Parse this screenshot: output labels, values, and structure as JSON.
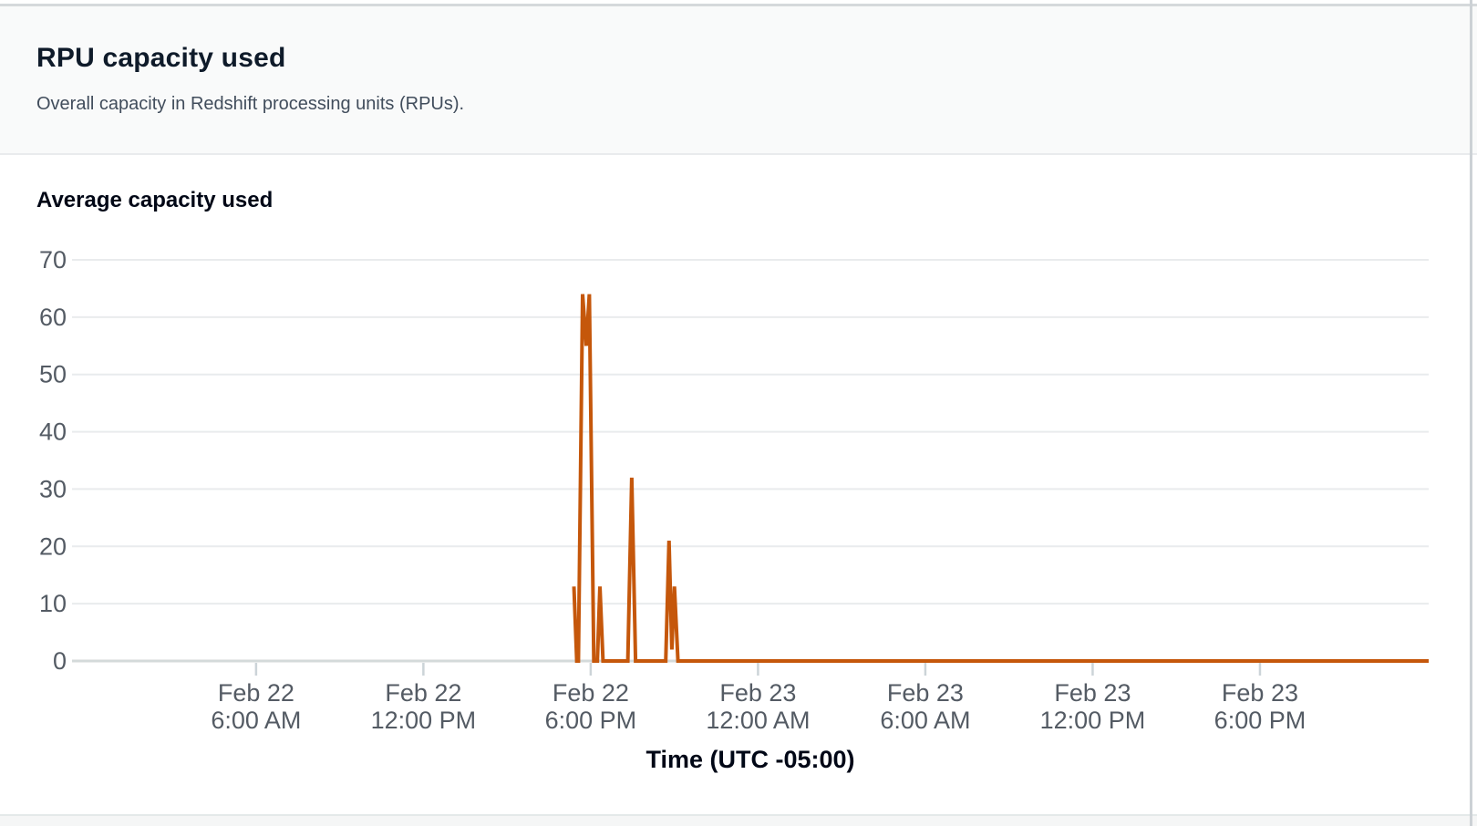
{
  "panel": {
    "title": "RPU capacity used",
    "description": "Overall capacity in Redshift processing units (RPUs)."
  },
  "chart_data": {
    "type": "line",
    "title": "Average capacity used",
    "xlabel": "Time (UTC -05:00)",
    "ylabel": "",
    "ylim": [
      0,
      70
    ],
    "y_ticks": [
      0,
      10,
      20,
      30,
      40,
      50,
      60,
      70
    ],
    "grid": true,
    "legend": false,
    "x_hours_reference": "hours since Feb 22 12:00 AM (UTC -05:00)",
    "x_domain_hours": [
      -0.6,
      48.05
    ],
    "x_ticks": [
      {
        "hour": 6,
        "label_line1": "Feb 22",
        "label_line2": "6:00 AM"
      },
      {
        "hour": 12,
        "label_line1": "Feb 22",
        "label_line2": "12:00 PM"
      },
      {
        "hour": 18,
        "label_line1": "Feb 22",
        "label_line2": "6:00 PM"
      },
      {
        "hour": 24,
        "label_line1": "Feb 23",
        "label_line2": "12:00 AM"
      },
      {
        "hour": 30,
        "label_line1": "Feb 23",
        "label_line2": "6:00 AM"
      },
      {
        "hour": 36,
        "label_line1": "Feb 23",
        "label_line2": "12:00 PM"
      },
      {
        "hour": 42,
        "label_line1": "Feb 23",
        "label_line2": "6:00 PM"
      }
    ],
    "series": [
      {
        "name": "Average capacity used",
        "color": "#c5570b",
        "points": [
          {
            "hour": 17.4,
            "value": 13
          },
          {
            "hour": 17.5,
            "value": 0
          },
          {
            "hour": 17.56,
            "value": 0
          },
          {
            "hour": 17.71,
            "value": 64
          },
          {
            "hour": 17.84,
            "value": 55
          },
          {
            "hour": 17.95,
            "value": 64
          },
          {
            "hour": 18.11,
            "value": 0
          },
          {
            "hour": 18.24,
            "value": 0
          },
          {
            "hour": 18.33,
            "value": 13
          },
          {
            "hour": 18.44,
            "value": 0
          },
          {
            "hour": 19.33,
            "value": 0
          },
          {
            "hour": 19.47,
            "value": 32
          },
          {
            "hour": 19.61,
            "value": 0
          },
          {
            "hour": 20.69,
            "value": 0
          },
          {
            "hour": 20.81,
            "value": 21
          },
          {
            "hour": 20.91,
            "value": 2
          },
          {
            "hour": 21.0,
            "value": 13
          },
          {
            "hour": 21.13,
            "value": 0
          },
          {
            "hour": 48.05,
            "value": 0
          }
        ]
      }
    ]
  },
  "colors": {
    "series_orange": "#c5570b",
    "gridline": "#e9ebed",
    "axis_line": "#d4dada",
    "tick_mark": "#ccd4d8",
    "axis_label": "#545b64",
    "heading": "#0f1b2a",
    "secondary_text": "#414d5c"
  }
}
